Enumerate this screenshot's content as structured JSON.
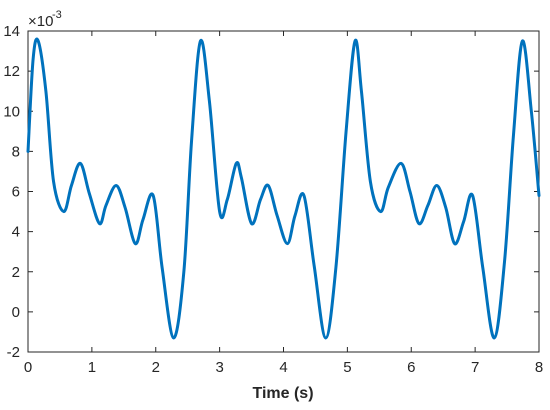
{
  "chart_data": {
    "type": "line",
    "title": "",
    "xlabel": "Time (s)",
    "ylabel": "",
    "y_exponent_label": "×10",
    "y_exponent_power": "-3",
    "xlim": [
      0,
      8
    ],
    "ylim": [
      -2,
      14
    ],
    "x_ticks": [
      0,
      1,
      2,
      3,
      4,
      5,
      6,
      7,
      8
    ],
    "y_ticks": [
      -2,
      0,
      2,
      4,
      6,
      8,
      10,
      12,
      14
    ],
    "x_tick_labels": [
      "0",
      "1",
      "2",
      "3",
      "4",
      "5",
      "6",
      "7",
      "8"
    ],
    "y_tick_labels": [
      "-2",
      "0",
      "2",
      "4",
      "6",
      "8",
      "10",
      "12",
      "14"
    ],
    "grid": false,
    "line_color": "#0072BD",
    "series": [
      {
        "x": [
          0,
          0.08,
          0.16,
          0.28,
          0.4,
          0.56,
          0.68,
          0.82,
          0.96,
          1.12,
          1.22,
          1.38,
          1.52,
          1.68,
          1.8,
          1.96,
          2.1,
          2.28,
          2.44,
          2.56,
          2.7,
          2.84,
          3.0,
          3.12,
          3.26,
          3.34,
          3.5,
          3.64,
          3.76,
          3.9,
          4.06,
          4.18,
          4.32,
          4.48,
          4.66,
          4.82,
          4.98,
          5.12,
          5.22,
          5.36,
          5.52,
          5.64,
          5.84,
          5.98,
          6.12,
          6.26,
          6.4,
          6.54,
          6.68,
          6.82,
          6.96,
          7.12,
          7.3,
          7.46,
          7.6,
          7.74,
          7.88,
          8.0
        ],
        "y": [
          8.0,
          12.6,
          13.5,
          11.0,
          6.5,
          5.0,
          6.3,
          7.4,
          5.9,
          4.4,
          5.3,
          6.3,
          5.2,
          3.4,
          4.6,
          5.8,
          2.2,
          -1.3,
          2.0,
          8.5,
          13.5,
          10.5,
          5.0,
          5.6,
          7.4,
          6.7,
          4.4,
          5.6,
          6.3,
          4.8,
          3.4,
          4.8,
          5.8,
          2.3,
          -1.3,
          2.2,
          9.0,
          13.5,
          11.0,
          6.5,
          5.0,
          6.2,
          7.4,
          6.0,
          4.4,
          5.3,
          6.3,
          5.2,
          3.4,
          4.5,
          5.8,
          2.2,
          -1.3,
          2.5,
          8.8,
          13.5,
          10.0,
          5.8
        ]
      }
    ]
  }
}
